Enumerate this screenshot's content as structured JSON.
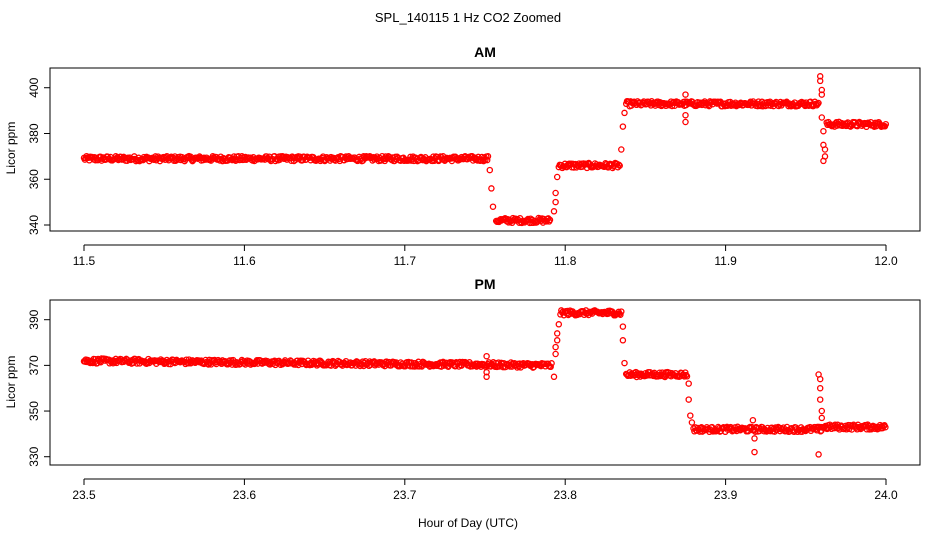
{
  "title": "SPL_140115  1 Hz CO2 Zoomed",
  "xlabel": "Hour of Day (UTC)",
  "colors": {
    "points": "#ff0000",
    "axes": "#000000",
    "background": "#ffffff"
  },
  "chart_data": [
    {
      "type": "scatter",
      "title": "AM",
      "ylabel": "Licor ppm",
      "xlim": [
        11.5,
        12.0
      ],
      "ylim": [
        340,
        406
      ],
      "xticks": [
        "11.5",
        "11.6",
        "11.7",
        "11.8",
        "11.9",
        "12.0"
      ],
      "xtick_values": [
        11.5,
        11.6,
        11.7,
        11.8,
        11.9,
        12.0
      ],
      "yticks": [
        "340",
        "360",
        "380",
        "400"
      ],
      "ytick_values": [
        340,
        360,
        380,
        400
      ],
      "segments": [
        {
          "x_start": 11.5,
          "x_end": 11.752,
          "level": 369
        },
        {
          "x_start": 11.757,
          "x_end": 11.791,
          "level": 342
        },
        {
          "x_start": 11.796,
          "x_end": 11.834,
          "level": 366
        },
        {
          "x_start": 11.838,
          "x_end": 11.958,
          "level": 393
        },
        {
          "x_start": 11.963,
          "x_end": 12.0,
          "level": 384
        }
      ],
      "outliers": [
        {
          "x": 11.753,
          "y": 364
        },
        {
          "x": 11.754,
          "y": 356
        },
        {
          "x": 11.755,
          "y": 348
        },
        {
          "x": 11.793,
          "y": 346
        },
        {
          "x": 11.794,
          "y": 350
        },
        {
          "x": 11.794,
          "y": 354
        },
        {
          "x": 11.795,
          "y": 361
        },
        {
          "x": 11.835,
          "y": 373
        },
        {
          "x": 11.836,
          "y": 383
        },
        {
          "x": 11.837,
          "y": 389
        },
        {
          "x": 11.875,
          "y": 397
        },
        {
          "x": 11.875,
          "y": 385
        },
        {
          "x": 11.875,
          "y": 388
        },
        {
          "x": 11.959,
          "y": 405
        },
        {
          "x": 11.959,
          "y": 403
        },
        {
          "x": 11.96,
          "y": 399
        },
        {
          "x": 11.96,
          "y": 397
        },
        {
          "x": 11.96,
          "y": 387
        },
        {
          "x": 11.961,
          "y": 381
        },
        {
          "x": 11.961,
          "y": 375
        },
        {
          "x": 11.962,
          "y": 370
        },
        {
          "x": 11.961,
          "y": 368
        },
        {
          "x": 11.962,
          "y": 373
        }
      ]
    },
    {
      "type": "scatter",
      "title": "PM",
      "ylabel": "Licor ppm",
      "xlim": [
        23.5,
        24.0
      ],
      "ylim": [
        329,
        396
      ],
      "xticks": [
        "23.5",
        "23.6",
        "23.7",
        "23.8",
        "23.9",
        "24.0"
      ],
      "xtick_values": [
        23.5,
        23.6,
        23.7,
        23.8,
        23.9,
        24.0
      ],
      "yticks": [
        "330",
        "350",
        "370",
        "390"
      ],
      "ytick_values": [
        330,
        350,
        370,
        390
      ],
      "segments": [
        {
          "x_start": 23.5,
          "x_end": 23.792,
          "level_start": 372,
          "level_end": 370
        },
        {
          "x_start": 23.797,
          "x_end": 23.835,
          "level": 393
        },
        {
          "x_start": 23.838,
          "x_end": 23.876,
          "level": 366
        },
        {
          "x_start": 23.88,
          "x_end": 23.96,
          "level": 342
        },
        {
          "x_start": 23.96,
          "x_end": 24.0,
          "level": 343
        }
      ],
      "outliers": [
        {
          "x": 23.751,
          "y": 374
        },
        {
          "x": 23.751,
          "y": 367
        },
        {
          "x": 23.751,
          "y": 365
        },
        {
          "x": 23.793,
          "y": 365
        },
        {
          "x": 23.794,
          "y": 375
        },
        {
          "x": 23.794,
          "y": 378
        },
        {
          "x": 23.795,
          "y": 381
        },
        {
          "x": 23.795,
          "y": 384
        },
        {
          "x": 23.796,
          "y": 388
        },
        {
          "x": 23.836,
          "y": 387
        },
        {
          "x": 23.836,
          "y": 381
        },
        {
          "x": 23.837,
          "y": 371
        },
        {
          "x": 23.877,
          "y": 362
        },
        {
          "x": 23.877,
          "y": 355
        },
        {
          "x": 23.878,
          "y": 348
        },
        {
          "x": 23.879,
          "y": 345
        },
        {
          "x": 23.917,
          "y": 346
        },
        {
          "x": 23.918,
          "y": 338
        },
        {
          "x": 23.918,
          "y": 332
        },
        {
          "x": 23.958,
          "y": 366
        },
        {
          "x": 23.959,
          "y": 364
        },
        {
          "x": 23.959,
          "y": 360
        },
        {
          "x": 23.959,
          "y": 355
        },
        {
          "x": 23.96,
          "y": 350
        },
        {
          "x": 23.96,
          "y": 347
        },
        {
          "x": 23.958,
          "y": 331
        }
      ]
    }
  ]
}
